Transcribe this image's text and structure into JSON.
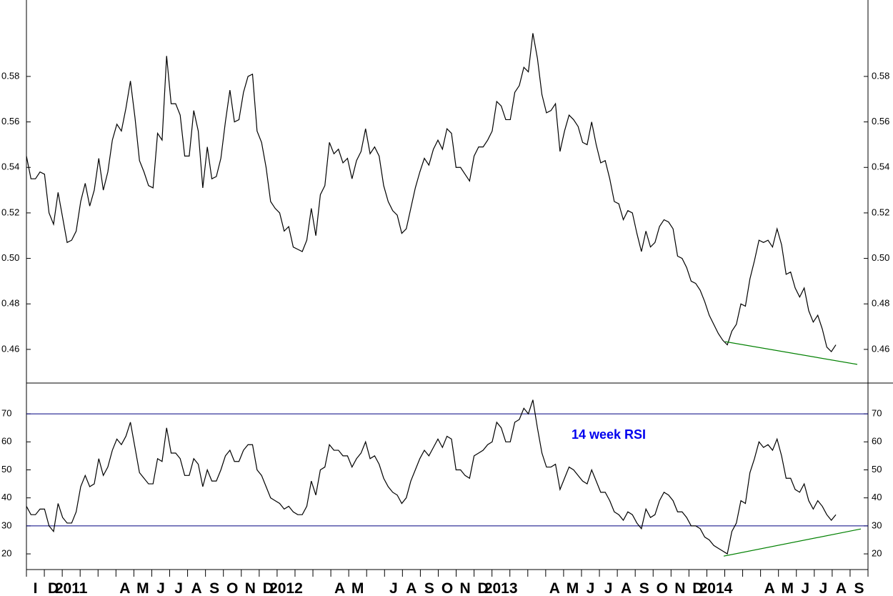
{
  "x_axis": {
    "labels": [
      "I",
      "D",
      "2011",
      null,
      null,
      "A",
      "M",
      "J",
      "J",
      "A",
      "S",
      "O",
      "N",
      "D",
      "2012",
      null,
      null,
      "A",
      "M",
      null,
      "J",
      "A",
      "S",
      "O",
      "N",
      "D",
      "2013",
      null,
      null,
      "A",
      "M",
      "J",
      "J",
      "A",
      "S",
      "O",
      "N",
      "D",
      "2014",
      null,
      null,
      "A",
      "M",
      "J",
      "J",
      "A",
      "S"
    ]
  },
  "chart_data": [
    {
      "type": "line",
      "color": "#000000",
      "ylim": [
        0.4452,
        0.6136
      ],
      "yticks": [
        0.46,
        0.48,
        {
          "value": 0.5,
          "label": "0.50"
        },
        0.52,
        0.54,
        0.56,
        0.58
      ],
      "values": [
        0.545,
        0.535,
        0.535,
        0.538,
        0.537,
        0.52,
        0.515,
        0.529,
        0.518,
        0.507,
        0.508,
        0.512,
        0.525,
        0.533,
        0.523,
        0.53,
        0.544,
        0.53,
        0.538,
        0.552,
        0.559,
        0.556,
        0.566,
        0.578,
        0.562,
        0.543,
        0.538,
        0.532,
        0.531,
        0.555,
        0.552,
        0.589,
        0.568,
        0.568,
        0.563,
        0.545,
        0.545,
        0.565,
        0.556,
        0.531,
        0.549,
        0.535,
        0.536,
        0.544,
        0.56,
        0.574,
        0.56,
        0.561,
        0.573,
        0.58,
        0.581,
        0.556,
        0.551,
        0.54,
        0.525,
        0.522,
        0.52,
        0.512,
        0.514,
        0.505,
        0.504,
        0.503,
        0.508,
        0.522,
        0.51,
        0.528,
        0.532,
        0.551,
        0.546,
        0.548,
        0.542,
        0.544,
        0.535,
        0.543,
        0.547,
        0.557,
        0.546,
        0.549,
        0.545,
        0.532,
        0.525,
        0.521,
        0.519,
        0.511,
        0.513,
        0.522,
        0.531,
        0.538,
        0.544,
        0.541,
        0.548,
        0.552,
        0.548,
        0.557,
        0.555,
        0.54,
        0.54,
        0.537,
        0.534,
        0.545,
        0.549,
        0.549,
        0.552,
        0.556,
        0.569,
        0.567,
        0.561,
        0.561,
        0.573,
        0.576,
        0.584,
        0.582,
        0.599,
        0.588,
        0.572,
        0.564,
        0.565,
        0.568,
        0.547,
        0.556,
        0.563,
        0.561,
        0.558,
        0.551,
        0.55,
        0.56,
        0.55,
        0.542,
        0.543,
        0.535,
        0.525,
        0.524,
        0.517,
        0.521,
        0.52,
        0.511,
        0.503,
        0.512,
        0.505,
        0.507,
        0.514,
        0.517,
        0.516,
        0.513,
        0.501,
        0.5,
        0.496,
        0.49,
        0.489,
        0.486,
        0.481,
        0.475,
        0.471,
        0.467,
        0.464,
        0.462,
        0.468,
        0.471,
        0.48,
        0.479,
        0.491,
        0.499,
        0.508,
        0.507,
        0.508,
        0.505,
        0.513,
        0.506,
        0.493,
        0.494,
        0.487,
        0.483,
        0.487,
        0.477,
        0.472,
        0.475,
        0.469,
        0.461,
        0.459,
        0.462
      ],
      "trendline": {
        "color": "#008000",
        "values": [
          0.4634,
          0.4534
        ]
      }
    },
    {
      "type": "line",
      "color": "#000000",
      "ylim": [
        14.4,
        81
      ],
      "yticks": [
        20,
        30,
        40,
        50,
        60,
        70
      ],
      "reference_lines": {
        "color": "#000080",
        "values": [
          70,
          30
        ]
      },
      "annotation": {
        "text": "14 week RSI",
        "color": "#0000ee"
      },
      "values": [
        37,
        34,
        34,
        36,
        36,
        30,
        28,
        38,
        33,
        31,
        31,
        35,
        44,
        48,
        44,
        45,
        54,
        48,
        51,
        57,
        61,
        59,
        62,
        67,
        58,
        49,
        47,
        45,
        45,
        54,
        53,
        65,
        56,
        56,
        54,
        48,
        48,
        54,
        52,
        44,
        50,
        46,
        46,
        50,
        55,
        57,
        53,
        53,
        57,
        59,
        59,
        50,
        48,
        44,
        40,
        39,
        38,
        36,
        37,
        35,
        34,
        34,
        37,
        46,
        41,
        50,
        51,
        59,
        57,
        57,
        55,
        55,
        51,
        54,
        56,
        60,
        54,
        55,
        52,
        47,
        44,
        42,
        41,
        38,
        40,
        46,
        50,
        54,
        57,
        55,
        58,
        61,
        58,
        62,
        61,
        50,
        50,
        48,
        47,
        55,
        56,
        57,
        59,
        60,
        67,
        65,
        60,
        60,
        67,
        68,
        72,
        70,
        75,
        65,
        56,
        51,
        51,
        52,
        43,
        47,
        51,
        50,
        48,
        46,
        45,
        50,
        46,
        42,
        42,
        39,
        35,
        34,
        32,
        35,
        34,
        31,
        29,
        36,
        33,
        34,
        39,
        42,
        41,
        39,
        35,
        35,
        33,
        30,
        30,
        29,
        26,
        25,
        23,
        22,
        21,
        20,
        28,
        31,
        39,
        38,
        49,
        54,
        60,
        58,
        59,
        57,
        61,
        55,
        47,
        47,
        43,
        42,
        45,
        39,
        36,
        39,
        37,
        34,
        32,
        34
      ],
      "trendline": {
        "color": "#008000",
        "values": [
          19.2,
          28.9
        ]
      }
    }
  ]
}
